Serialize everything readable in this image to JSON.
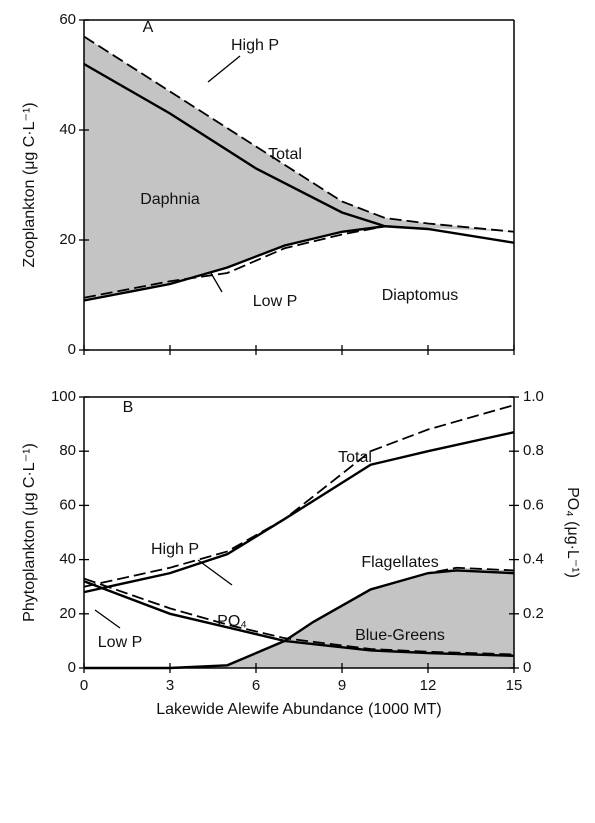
{
  "chart_data": [
    {
      "type": "line",
      "ylabel": "Zooplankton (μg C·L⁻¹)",
      "xlim": [
        0,
        15
      ],
      "xticks": [
        0,
        3,
        6,
        9,
        12,
        15
      ],
      "ylim": [
        0,
        60
      ],
      "yticks": [
        0,
        20,
        40,
        60
      ],
      "annotations": [
        "A",
        "High P",
        "Total",
        "Daphnia",
        "Low P",
        "Diaptomus"
      ],
      "series": [
        {
          "color": "#000",
          "dash": true,
          "x": [
            0,
            3,
            6,
            9,
            10.5,
            12,
            15
          ],
          "values": [
            57,
            47,
            37,
            27,
            24,
            23,
            21.5
          ]
        },
        {
          "color": "#000",
          "dash": false,
          "x": [
            0,
            3,
            6,
            9,
            10.5,
            12,
            15
          ],
          "values": [
            52,
            43,
            33,
            25,
            22.5,
            22,
            19.5
          ]
        },
        {
          "color": "#000",
          "dash": false,
          "fill": "#c4c4c4",
          "fill_to": 0,
          "x": [
            0,
            3,
            5,
            7,
            9,
            10.5
          ],
          "values": [
            9,
            12,
            15,
            19,
            21.5,
            22.5
          ]
        },
        {
          "color": "#000",
          "dash": true,
          "x": [
            0,
            3,
            5,
            7,
            9,
            10.5
          ],
          "values": [
            9.5,
            12.5,
            14,
            18.5,
            21,
            22.5
          ]
        }
      ]
    },
    {
      "type": "line",
      "ylabel": "Phytoplankton (μg C·L⁻¹)",
      "xlabel": "Lakewide Alewife Abundance (1000 MT)",
      "y2label": "PO₄ (μg·L⁻¹)",
      "xlim": [
        0,
        15
      ],
      "xticks": [
        0,
        3,
        6,
        9,
        12,
        15
      ],
      "ylim": [
        0,
        100
      ],
      "yticks": [
        0,
        20,
        40,
        60,
        80,
        100
      ],
      "y2lim": [
        0,
        1
      ],
      "y2ticks": [
        0,
        0.2,
        0.4,
        0.6,
        0.8,
        {
          "value": 1,
          "label": "1.0"
        }
      ],
      "annotations": [
        "B",
        "Total",
        "High P",
        "Flagellates",
        "PO₄",
        "Low P",
        "Blue-Greens"
      ],
      "series": [
        {
          "color": "#000",
          "dash": true,
          "fill": "#c4c4c4",
          "x": [
            0,
            3,
            5,
            7,
            8,
            10,
            12,
            13,
            15
          ],
          "values": [
            0,
            0,
            1,
            10,
            17,
            29,
            35,
            37,
            36
          ]
        },
        {
          "color": "#000",
          "dash": false,
          "x": [
            0,
            3,
            5,
            7,
            8,
            10,
            12,
            13,
            15
          ],
          "values": [
            0,
            0,
            1,
            10,
            17,
            29,
            35,
            36,
            35
          ]
        },
        {
          "color": "#000",
          "dash": true,
          "x": [
            0,
            3,
            5,
            7,
            10,
            12,
            15
          ],
          "values": [
            30,
            37,
            43,
            55,
            80,
            88,
            97
          ]
        },
        {
          "color": "#000",
          "dash": false,
          "x": [
            0,
            3,
            5,
            7,
            10,
            12,
            15
          ],
          "values": [
            28,
            35,
            42,
            55,
            75,
            80,
            87
          ]
        },
        {
          "color": "#000",
          "dash": true,
          "axis": "y2",
          "x": [
            0,
            3,
            5,
            7,
            10,
            12,
            15
          ],
          "values": [
            0.33,
            0.22,
            0.16,
            0.11,
            0.07,
            0.06,
            0.05
          ]
        },
        {
          "color": "#000",
          "dash": false,
          "axis": "y2",
          "x": [
            0,
            3,
            5,
            7,
            10,
            12,
            15
          ],
          "values": [
            0.32,
            0.2,
            0.15,
            0.1,
            0.065,
            0.055,
            0.045
          ]
        }
      ]
    }
  ]
}
